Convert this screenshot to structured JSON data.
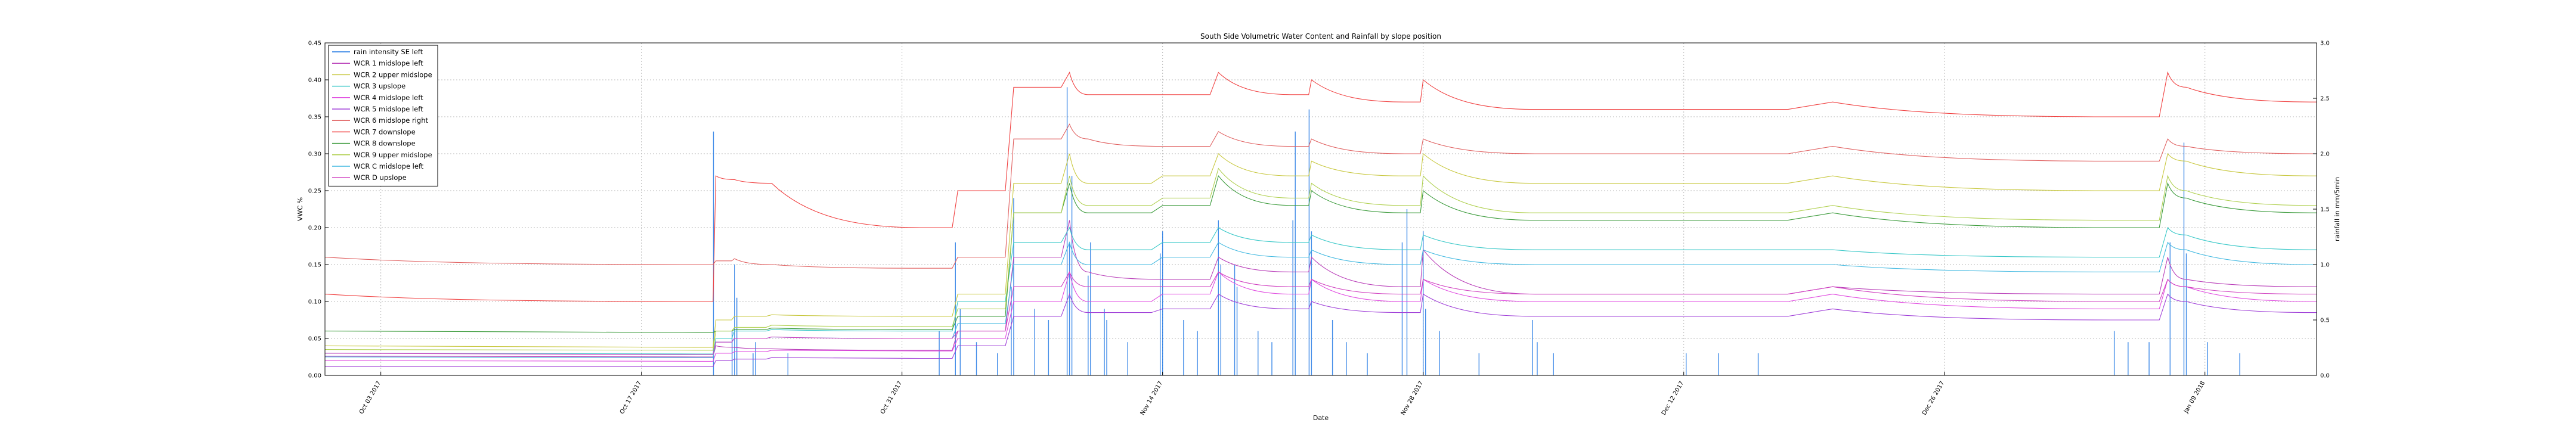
{
  "chart_data": {
    "type": "line",
    "title": "South Side Volumetric Water Content and Rainfall by slope position",
    "xlabel": "Date",
    "ylabel_left": "VWC %",
    "ylabel_right": "rainfall in mm/5min",
    "x_range": [
      "2017-09-30",
      "2018-01-15"
    ],
    "ylim_left": [
      0.0,
      0.45
    ],
    "ylim_right": [
      0.0,
      3.0
    ],
    "yticks_left": [
      "0.00",
      "0.05",
      "0.10",
      "0.15",
      "0.20",
      "0.25",
      "0.30",
      "0.35",
      "0.40",
      "0.45"
    ],
    "yticks_right": [
      "0.0",
      "0.5",
      "1.0",
      "1.5",
      "2.0",
      "2.5",
      "3.0"
    ],
    "xticks": [
      {
        "date": "2017-10-03",
        "label": "Oct 03 2017"
      },
      {
        "date": "2017-10-17",
        "label": "Oct 17 2017"
      },
      {
        "date": "2017-10-31",
        "label": "Oct 31 2017"
      },
      {
        "date": "2017-11-14",
        "label": "Nov 14 2017"
      },
      {
        "date": "2017-11-28",
        "label": "Nov 28 2017"
      },
      {
        "date": "2017-12-12",
        "label": "Dec 12 2017"
      },
      {
        "date": "2017-12-26",
        "label": "Dec 26 2017"
      },
      {
        "date": "2018-01-09",
        "label": "Jan 09 2018"
      }
    ],
    "grid": true,
    "legend_position": "top-left",
    "rain_event_dates": [
      "2017-10-21",
      "2017-10-22",
      "2017-11-03",
      "2017-11-06",
      "2017-11-09",
      "2017-11-10",
      "2017-11-11",
      "2017-11-14",
      "2017-11-17",
      "2017-11-21",
      "2017-11-22",
      "2017-11-27",
      "2017-11-28",
      "2017-12-04",
      "2017-12-20",
      "2018-01-04",
      "2018-01-07",
      "2018-01-08"
    ],
    "rain": {
      "name": "rain intensity SE left",
      "color": "#1f77e4",
      "x": [
        "2017-10-21",
        "2017-10-22",
        "2017-10-22",
        "2017-10-22",
        "2017-10-23",
        "2017-10-23",
        "2017-10-25",
        "2017-11-02",
        "2017-11-03",
        "2017-11-03",
        "2017-11-04",
        "2017-11-05",
        "2017-11-06",
        "2017-11-06",
        "2017-11-07",
        "2017-11-08",
        "2017-11-09",
        "2017-11-09",
        "2017-11-09",
        "2017-11-10",
        "2017-11-10",
        "2017-11-11",
        "2017-11-11",
        "2017-11-12",
        "2017-11-14",
        "2017-11-14",
        "2017-11-15",
        "2017-11-16",
        "2017-11-17",
        "2017-11-17",
        "2017-11-18",
        "2017-11-18",
        "2017-11-19",
        "2017-11-20",
        "2017-11-21",
        "2017-11-21",
        "2017-11-22",
        "2017-11-22",
        "2017-11-23",
        "2017-11-24",
        "2017-11-25",
        "2017-11-27",
        "2017-11-27",
        "2017-11-28",
        "2017-11-28",
        "2017-11-29",
        "2017-12-01",
        "2017-12-04",
        "2017-12-04",
        "2017-12-05",
        "2017-12-12",
        "2017-12-14",
        "2017-12-16",
        "2018-01-04",
        "2018-01-05",
        "2018-01-06",
        "2018-01-07",
        "2018-01-08",
        "2018-01-08",
        "2018-01-09",
        "2018-01-11"
      ],
      "y": [
        2.2,
        1.0,
        0.7,
        0.4,
        0.2,
        0.3,
        0.2,
        0.4,
        0.6,
        1.2,
        0.3,
        0.2,
        0.8,
        1.6,
        0.6,
        0.5,
        1.2,
        1.8,
        2.6,
        0.9,
        1.2,
        0.6,
        0.5,
        0.3,
        1.1,
        1.3,
        0.5,
        0.4,
        1.4,
        1.0,
        1.0,
        0.8,
        0.4,
        0.3,
        1.4,
        2.2,
        2.4,
        1.3,
        0.5,
        0.3,
        0.2,
        1.5,
        1.2,
        1.3,
        0.6,
        0.4,
        0.2,
        0.3,
        0.5,
        0.2,
        0.2,
        0.2,
        0.2,
        0.4,
        0.3,
        0.3,
        1.2,
        2.1,
        1.1,
        0.3,
        0.2
      ]
    },
    "series": [
      {
        "name": "WCR 1 midslope left",
        "color": "#b93fb9",
        "x": [
          "2017-09-30",
          "2017-10-20",
          "2017-10-21",
          "2017-10-22",
          "2017-10-24",
          "2017-11-01",
          "2017-11-03",
          "2017-11-06",
          "2017-11-09",
          "2017-11-10",
          "2017-11-14",
          "2017-11-17",
          "2017-11-21",
          "2017-11-22",
          "2017-11-27",
          "2017-11-28",
          "2017-12-04",
          "2017-12-20",
          "2018-01-04",
          "2018-01-07",
          "2018-01-08",
          "2018-01-15"
        ],
        "y": [
          0.026,
          0.025,
          0.04,
          0.038,
          0.036,
          0.034,
          0.06,
          0.16,
          0.21,
          0.14,
          0.13,
          0.16,
          0.14,
          0.16,
          0.12,
          0.17,
          0.11,
          0.12,
          0.11,
          0.16,
          0.13,
          0.12
        ]
      },
      {
        "name": "WCR 2 upper midslope",
        "color": "#c8c840",
        "x": [
          "2017-09-30",
          "2017-10-20",
          "2017-10-21",
          "2017-10-22",
          "2017-10-24",
          "2017-11-01",
          "2017-11-03",
          "2017-11-06",
          "2017-11-09",
          "2017-11-10",
          "2017-11-14",
          "2017-11-17",
          "2017-11-21",
          "2017-11-22",
          "2017-11-27",
          "2017-11-28",
          "2017-12-04",
          "2017-12-20",
          "2018-01-04",
          "2018-01-07",
          "2018-01-08",
          "2018-01-15"
        ],
        "y": [
          0.04,
          0.038,
          0.075,
          0.08,
          0.082,
          0.08,
          0.11,
          0.26,
          0.3,
          0.26,
          0.27,
          0.3,
          0.27,
          0.29,
          0.27,
          0.3,
          0.26,
          0.27,
          0.25,
          0.3,
          0.29,
          0.27
        ]
      },
      {
        "name": "WCR 3 upslope",
        "color": "#39c8c8",
        "x": [
          "2017-09-30",
          "2017-10-20",
          "2017-10-21",
          "2017-10-22",
          "2017-10-24",
          "2017-11-01",
          "2017-11-03",
          "2017-11-06",
          "2017-11-09",
          "2017-11-10",
          "2017-11-14",
          "2017-11-17",
          "2017-11-21",
          "2017-11-22",
          "2017-11-27",
          "2017-11-28",
          "2017-12-04",
          "2017-12-20",
          "2018-01-04",
          "2018-01-07",
          "2018-01-08",
          "2018-01-15"
        ],
        "y": [
          0.03,
          0.029,
          0.05,
          0.06,
          0.062,
          0.06,
          0.1,
          0.18,
          0.2,
          0.17,
          0.18,
          0.2,
          0.18,
          0.19,
          0.17,
          0.19,
          0.17,
          0.17,
          0.16,
          0.2,
          0.19,
          0.17
        ]
      },
      {
        "name": "WCR 4 midslope left",
        "color": "#e04ae0",
        "x": [
          "2017-09-30",
          "2017-10-20",
          "2017-10-21",
          "2017-10-22",
          "2017-10-24",
          "2017-11-01",
          "2017-11-03",
          "2017-11-06",
          "2017-11-09",
          "2017-11-10",
          "2017-11-14",
          "2017-11-17",
          "2017-11-21",
          "2017-11-22",
          "2017-11-27",
          "2017-11-28",
          "2017-12-04",
          "2017-12-20",
          "2018-01-04",
          "2018-01-07",
          "2018-01-08",
          "2018-01-15"
        ],
        "y": [
          0.02,
          0.019,
          0.03,
          0.032,
          0.034,
          0.033,
          0.05,
          0.1,
          0.14,
          0.1,
          0.11,
          0.14,
          0.11,
          0.13,
          0.1,
          0.13,
          0.1,
          0.11,
          0.09,
          0.13,
          0.12,
          0.1
        ]
      },
      {
        "name": "WCR 5 midslope left",
        "color": "#a040d8",
        "x": [
          "2017-09-30",
          "2017-10-20",
          "2017-10-21",
          "2017-10-22",
          "2017-10-24",
          "2017-11-01",
          "2017-11-03",
          "2017-11-06",
          "2017-11-09",
          "2017-11-10",
          "2017-11-14",
          "2017-11-17",
          "2017-11-21",
          "2017-11-22",
          "2017-11-27",
          "2017-11-28",
          "2017-12-04",
          "2017-12-20",
          "2018-01-04",
          "2018-01-07",
          "2018-01-08",
          "2018-01-15"
        ],
        "y": [
          0.012,
          0.012,
          0.02,
          0.022,
          0.024,
          0.023,
          0.04,
          0.08,
          0.11,
          0.085,
          0.09,
          0.11,
          0.09,
          0.1,
          0.085,
          0.11,
          0.08,
          0.09,
          0.075,
          0.11,
          0.1,
          0.085
        ]
      },
      {
        "name": "WCR 6 midslope right",
        "color": "#e06060",
        "x": [
          "2017-09-30",
          "2017-10-20",
          "2017-10-21",
          "2017-10-22",
          "2017-10-24",
          "2017-11-01",
          "2017-11-03",
          "2017-11-06",
          "2017-11-09",
          "2017-11-10",
          "2017-11-14",
          "2017-11-17",
          "2017-11-21",
          "2017-11-22",
          "2017-11-27",
          "2017-11-28",
          "2017-12-04",
          "2017-12-20",
          "2018-01-04",
          "2018-01-07",
          "2018-01-08",
          "2018-01-15"
        ],
        "y": [
          0.16,
          0.15,
          0.155,
          0.158,
          0.15,
          0.145,
          0.16,
          0.32,
          0.34,
          0.32,
          0.31,
          0.33,
          0.31,
          0.32,
          0.3,
          0.32,
          0.3,
          0.31,
          0.29,
          0.32,
          0.31,
          0.3
        ]
      },
      {
        "name": "WCR 7 downslope",
        "color": "#f04040",
        "x": [
          "2017-09-30",
          "2017-10-20",
          "2017-10-21",
          "2017-10-22",
          "2017-10-24",
          "2017-11-01",
          "2017-11-03",
          "2017-11-06",
          "2017-11-09",
          "2017-11-10",
          "2017-11-14",
          "2017-11-17",
          "2017-11-21",
          "2017-11-22",
          "2017-11-27",
          "2017-11-28",
          "2017-12-04",
          "2017-12-20",
          "2018-01-04",
          "2018-01-07",
          "2018-01-08",
          "2018-01-15"
        ],
        "y": [
          0.11,
          0.1,
          0.27,
          0.265,
          0.26,
          0.2,
          0.25,
          0.39,
          0.41,
          0.38,
          0.38,
          0.41,
          0.38,
          0.4,
          0.37,
          0.4,
          0.36,
          0.37,
          0.35,
          0.41,
          0.39,
          0.37
        ]
      },
      {
        "name": "WCR 8 downslope",
        "color": "#3a9a3a",
        "x": [
          "2017-09-30",
          "2017-10-20",
          "2017-10-21",
          "2017-10-22",
          "2017-10-24",
          "2017-11-01",
          "2017-11-03",
          "2017-11-06",
          "2017-11-09",
          "2017-11-10",
          "2017-11-14",
          "2017-11-17",
          "2017-11-21",
          "2017-11-22",
          "2017-11-27",
          "2017-11-28",
          "2017-12-04",
          "2017-12-20",
          "2018-01-04",
          "2018-01-07",
          "2018-01-08",
          "2018-01-15"
        ],
        "y": [
          0.06,
          0.058,
          0.06,
          0.062,
          0.064,
          0.062,
          0.08,
          0.22,
          0.26,
          0.22,
          0.23,
          0.27,
          0.23,
          0.25,
          0.22,
          0.25,
          0.21,
          0.22,
          0.2,
          0.26,
          0.24,
          0.22
        ]
      },
      {
        "name": "WCR 9 upper midslope",
        "color": "#b0d050",
        "x": [
          "2017-09-30",
          "2017-10-20",
          "2017-10-21",
          "2017-10-22",
          "2017-10-24",
          "2017-11-01",
          "2017-11-03",
          "2017-11-06",
          "2017-11-09",
          "2017-11-10",
          "2017-11-14",
          "2017-11-17",
          "2017-11-21",
          "2017-11-22",
          "2017-11-27",
          "2017-11-28",
          "2017-12-04",
          "2017-12-20",
          "2018-01-04",
          "2018-01-07",
          "2018-01-08",
          "2018-01-15"
        ],
        "y": [
          0.035,
          0.034,
          0.06,
          0.065,
          0.068,
          0.066,
          0.09,
          0.22,
          0.27,
          0.23,
          0.24,
          0.28,
          0.24,
          0.26,
          0.23,
          0.27,
          0.22,
          0.23,
          0.21,
          0.27,
          0.25,
          0.23
        ]
      },
      {
        "name": "WCR C midslope left",
        "color": "#40b8e0",
        "x": [
          "2017-09-30",
          "2017-10-20",
          "2017-10-21",
          "2017-10-22",
          "2017-10-24",
          "2017-11-01",
          "2017-11-03",
          "2017-11-06",
          "2017-11-09",
          "2017-11-10",
          "2017-11-14",
          "2017-11-17",
          "2017-11-21",
          "2017-11-22",
          "2017-11-27",
          "2017-11-28",
          "2017-12-04",
          "2017-12-20",
          "2018-01-04",
          "2018-01-07",
          "2018-01-08",
          "2018-01-15"
        ],
        "y": [
          0.025,
          0.024,
          0.045,
          0.05,
          0.052,
          0.05,
          0.07,
          0.15,
          0.18,
          0.15,
          0.16,
          0.18,
          0.16,
          0.17,
          0.15,
          0.17,
          0.15,
          0.15,
          0.14,
          0.18,
          0.17,
          0.15
        ]
      },
      {
        "name": "WCR D upslope",
        "color": "#d040c0",
        "x": [
          "2017-09-30",
          "2017-10-20",
          "2017-10-21",
          "2017-10-22",
          "2017-10-24",
          "2017-11-01",
          "2017-11-03",
          "2017-11-06",
          "2017-11-09",
          "2017-11-10",
          "2017-11-14",
          "2017-11-17",
          "2017-11-21",
          "2017-11-22",
          "2017-11-27",
          "2017-11-28",
          "2017-12-04",
          "2017-12-20",
          "2018-01-04",
          "2018-01-07",
          "2018-01-08",
          "2018-01-15"
        ],
        "y": [
          0.03,
          0.028,
          0.045,
          0.05,
          0.052,
          0.05,
          0.06,
          0.12,
          0.14,
          0.12,
          0.12,
          0.14,
          0.12,
          0.13,
          0.11,
          0.13,
          0.11,
          0.12,
          0.1,
          0.13,
          0.12,
          0.11
        ]
      }
    ]
  }
}
